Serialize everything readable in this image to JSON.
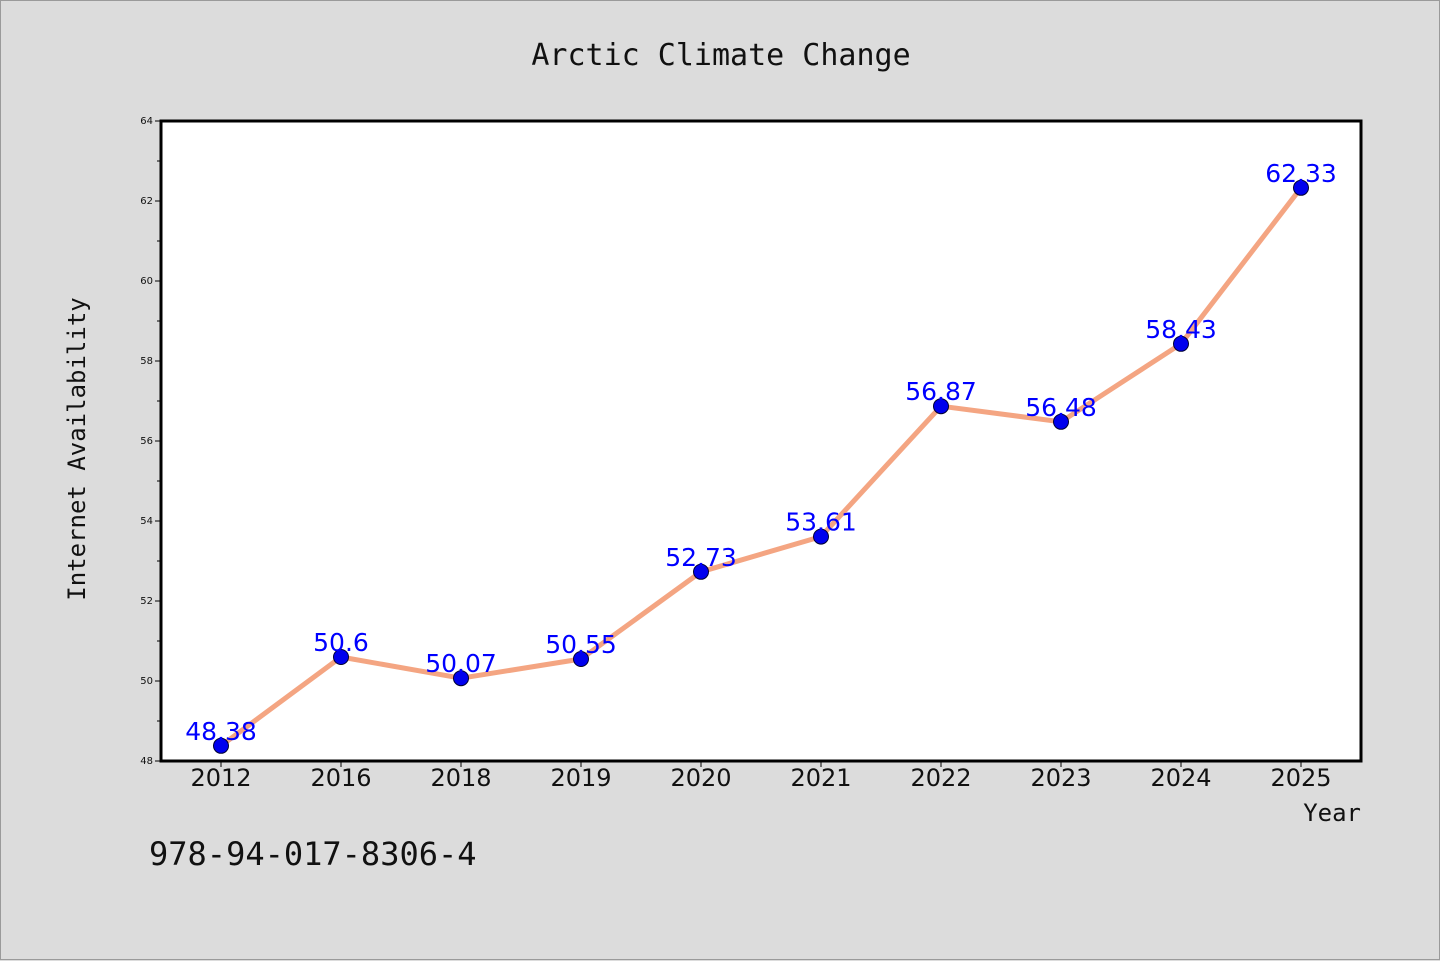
{
  "chart_data": {
    "type": "line",
    "title": "Arctic Climate Change",
    "xlabel": "Year",
    "ylabel": "Internet Availability",
    "categories": [
      "2012",
      "2016",
      "2018",
      "2019",
      "2020",
      "2021",
      "2022",
      "2023",
      "2024",
      "2025"
    ],
    "series": [
      {
        "values": [
          48.38,
          50.6,
          50.07,
          50.55,
          52.73,
          53.61,
          56.87,
          56.48,
          58.43,
          62.33
        ],
        "labels": [
          "48.38",
          "50.6",
          "50.07",
          "50.55",
          "52.73",
          "53.61",
          "56.87",
          "56.48",
          "58.43",
          "62.33"
        ],
        "line_color": "#f4a582",
        "marker_color": "#0000ee",
        "label_color": "#0000ff"
      }
    ],
    "ylim": [
      48,
      64
    ],
    "yticks": [
      "48",
      "50",
      "52",
      "54",
      "56",
      "58",
      "60",
      "62",
      "64"
    ],
    "grid": false,
    "legend": "none"
  },
  "footnote": "978-94-017-8306-4"
}
